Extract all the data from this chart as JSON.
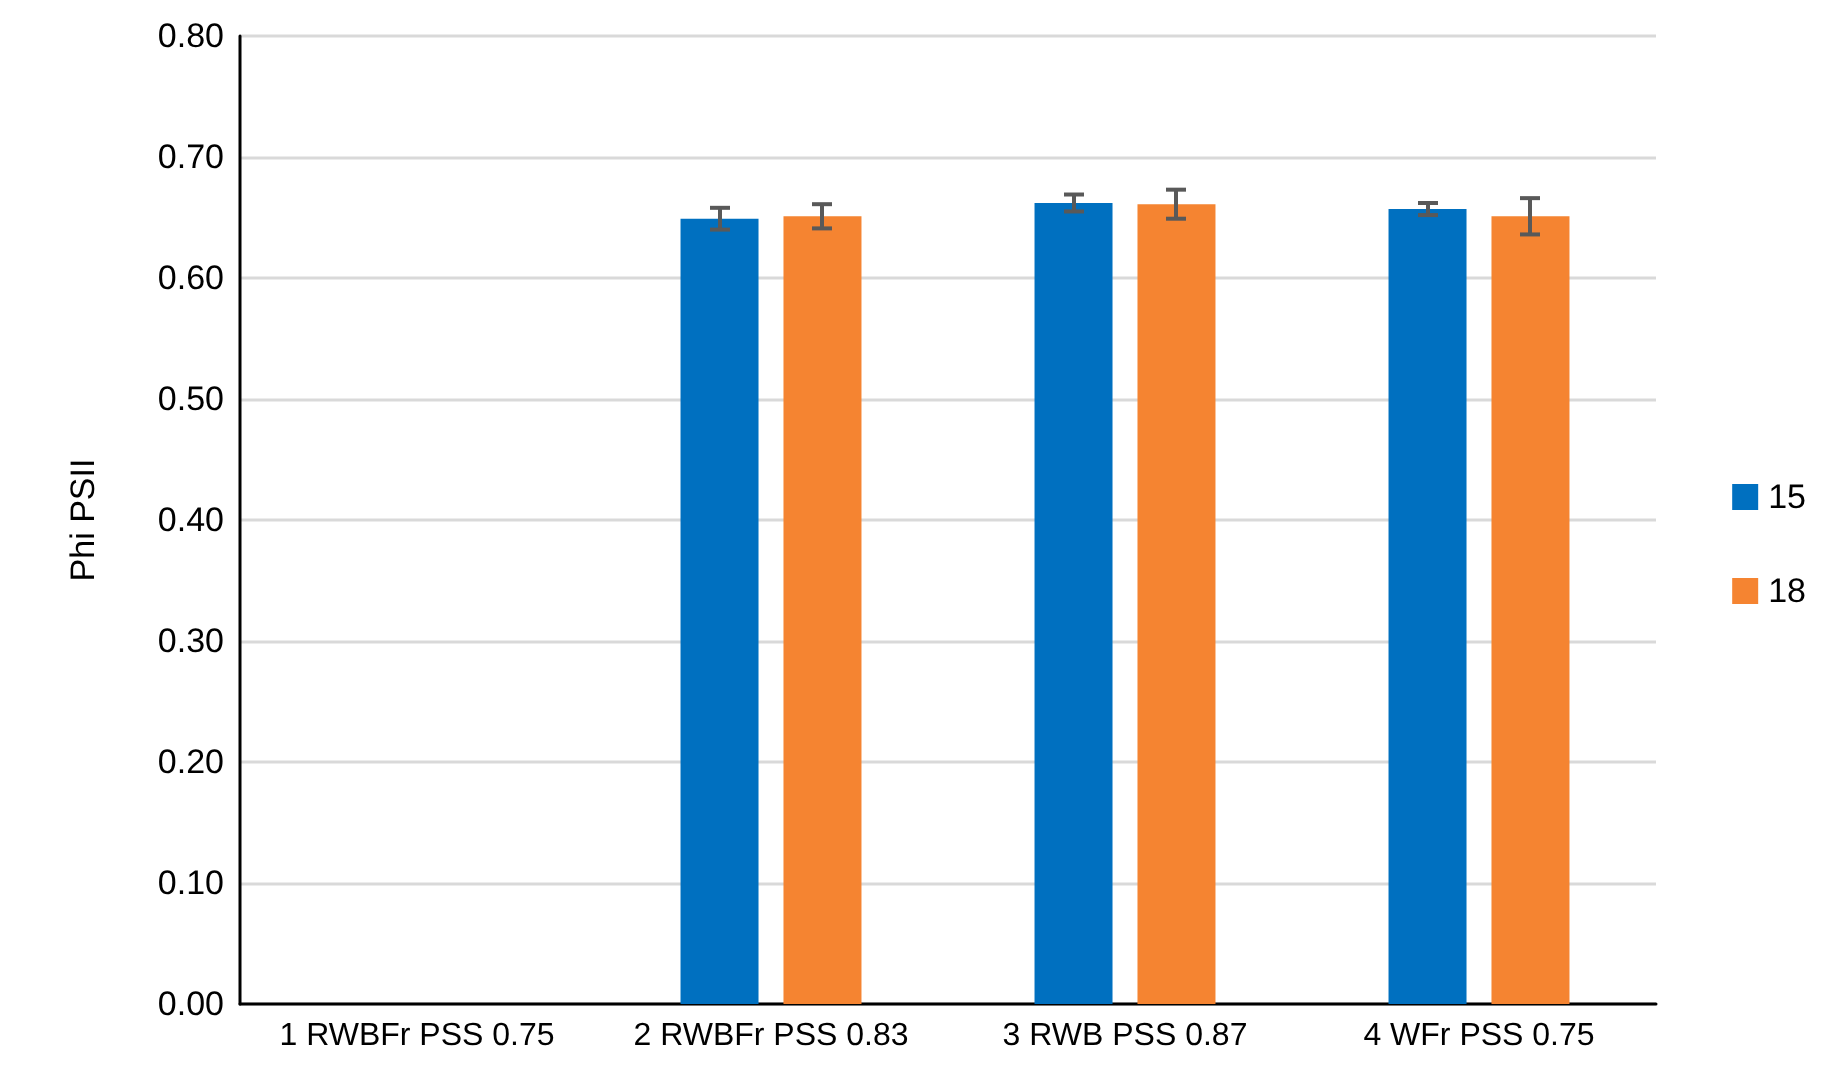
{
  "chart_data": {
    "type": "bar",
    "ylabel": "Phi PSII",
    "categories": [
      "1 RWBFr PSS 0.75",
      "2 RWBFr PSS 0.83",
      "3 RWB PSS 0.87",
      "4 WFr PSS 0.75"
    ],
    "series": [
      {
        "name": "15",
        "color": "#0070c0",
        "values": [
          null,
          0.649,
          0.662,
          0.657
        ],
        "errors": [
          null,
          0.009,
          0.007,
          0.005
        ]
      },
      {
        "name": "18",
        "color": "#f58431",
        "values": [
          null,
          0.651,
          0.661,
          0.651
        ],
        "errors": [
          null,
          0.01,
          0.012,
          0.015
        ]
      }
    ],
    "ylim": [
      0,
      0.8
    ],
    "yticks": [
      {
        "value": 0,
        "label": "0.00"
      },
      {
        "value": 0.1,
        "label": "0.10"
      },
      {
        "value": 0.2,
        "label": "0.20"
      },
      {
        "value": 0.3,
        "label": "0.30"
      },
      {
        "value": 0.4,
        "label": "0.40"
      },
      {
        "value": 0.5,
        "label": "0.50"
      },
      {
        "value": 0.6,
        "label": "0.60"
      },
      {
        "value": 0.7,
        "label": "0.70"
      },
      {
        "value": 0.8,
        "label": "0.80"
      }
    ],
    "grid": "y",
    "legend": "right"
  }
}
